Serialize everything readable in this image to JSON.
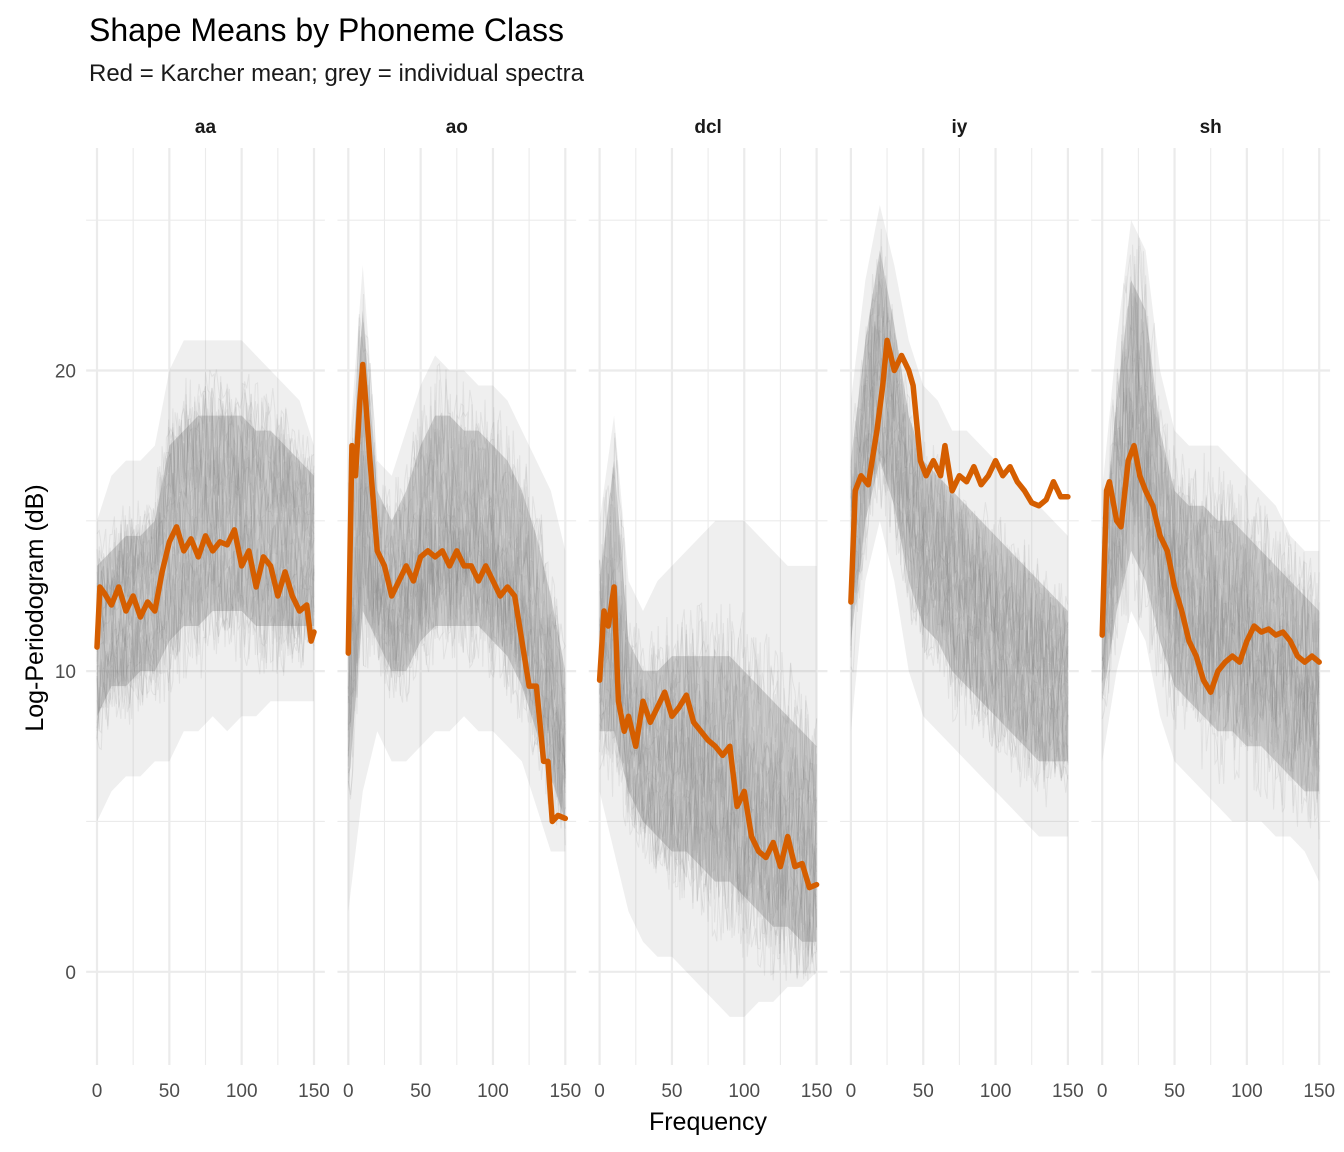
{
  "chart_data": {
    "type": "line",
    "title": "Shape Means by Phoneme Class",
    "subtitle": "Red = Karcher mean; grey = individual spectra",
    "xlabel": "Frequency",
    "ylabel": "Log-Periodogram (dB)",
    "xlim": [
      0,
      150
    ],
    "ylim": [
      -3.1,
      27.4
    ],
    "x_ticks": [
      0,
      50,
      100,
      150
    ],
    "x_tick_labels": [
      "0",
      "50",
      "100",
      "150"
    ],
    "y_ticks": [
      0,
      10,
      20
    ],
    "y_tick_labels": [
      "0",
      "10",
      "20"
    ],
    "grid": true,
    "colors": {
      "mean": "#d55e00",
      "individual": "#7f7f7f",
      "grid": "#ebebeb"
    },
    "band_x": [
      0,
      10,
      20,
      30,
      40,
      50,
      60,
      70,
      80,
      90,
      100,
      110,
      120,
      130,
      140,
      150
    ],
    "panels": [
      {
        "label": "aa",
        "mean": {
          "x": [
            0,
            2,
            5,
            10,
            15,
            20,
            25,
            30,
            35,
            40,
            45,
            50,
            55,
            60,
            65,
            70,
            75,
            80,
            85,
            90,
            95,
            100,
            105,
            110,
            115,
            120,
            125,
            130,
            135,
            140,
            145,
            148,
            150
          ],
          "y": [
            10.8,
            12.8,
            12.6,
            12.2,
            12.8,
            12.0,
            12.5,
            11.8,
            12.3,
            12.0,
            13.3,
            14.3,
            14.8,
            14.0,
            14.4,
            13.8,
            14.5,
            14.0,
            14.3,
            14.2,
            14.7,
            13.5,
            14.0,
            12.8,
            13.8,
            13.5,
            12.5,
            13.3,
            12.5,
            12.0,
            12.2,
            11.0,
            11.3
          ]
        },
        "outer_upper": [
          15,
          16.5,
          17,
          17,
          17.5,
          20,
          21,
          21,
          21,
          21,
          21,
          20.5,
          20,
          19.5,
          19,
          17.5
        ],
        "outer_lower": [
          5,
          6,
          6.5,
          6.5,
          7,
          7,
          8,
          8,
          8.5,
          8,
          8.5,
          8.5,
          9,
          9,
          9,
          9
        ],
        "inner_upper": [
          13.5,
          14,
          14.5,
          14.5,
          15,
          17.5,
          18,
          18.5,
          18.5,
          18.5,
          18.5,
          18,
          18,
          17.5,
          17,
          16.5
        ],
        "inner_lower": [
          8.5,
          9.5,
          9.5,
          10,
          10,
          11,
          11.5,
          11.5,
          12,
          12,
          12,
          11.5,
          11.5,
          11.5,
          11.5,
          11.5
        ]
      },
      {
        "label": "ao",
        "mean": {
          "x": [
            0,
            2.5,
            5,
            8,
            10,
            12,
            15,
            20,
            25,
            30,
            35,
            40,
            45,
            50,
            55,
            60,
            65,
            70,
            75,
            80,
            85,
            90,
            95,
            100,
            105,
            110,
            115,
            120,
            125,
            130,
            135,
            138,
            141,
            145,
            150
          ],
          "y": [
            10.6,
            17.5,
            16.5,
            19,
            20.2,
            19,
            17,
            14,
            13.5,
            12.5,
            13,
            13.5,
            13,
            13.8,
            14,
            13.8,
            14,
            13.5,
            14,
            13.5,
            13.5,
            13,
            13.5,
            13,
            12.5,
            12.8,
            12.5,
            11,
            9.5,
            9.5,
            7,
            7,
            5,
            5.2,
            5.1
          ]
        },
        "outer_upper": [
          17,
          23.5,
          17,
          16.5,
          18,
          19.5,
          20.5,
          20,
          20,
          19.5,
          19.5,
          19,
          18,
          17,
          16,
          14
        ],
        "outer_lower": [
          2,
          6,
          8,
          7,
          7,
          7.5,
          8,
          8,
          8.5,
          8,
          8,
          7.5,
          7,
          5.5,
          4,
          4
        ],
        "inner_upper": [
          15,
          22,
          16,
          15,
          16,
          17.5,
          18.5,
          18.5,
          18,
          18,
          17.5,
          17,
          16,
          14.5,
          12.5,
          10
        ],
        "inner_lower": [
          6,
          12,
          11,
          10,
          10,
          11,
          11.5,
          11.5,
          11.5,
          11.5,
          11,
          10.5,
          9.5,
          8,
          6.5,
          5
        ]
      },
      {
        "label": "dcl",
        "mean": {
          "x": [
            0,
            3,
            6,
            10,
            13,
            17,
            20,
            25,
            30,
            35,
            40,
            45,
            50,
            55,
            60,
            65,
            70,
            75,
            80,
            85,
            90,
            95,
            100,
            105,
            110,
            115,
            120,
            125,
            130,
            135,
            140,
            145,
            150
          ],
          "y": [
            9.7,
            12,
            11.5,
            12.8,
            9,
            8,
            8.5,
            7.5,
            9,
            8.3,
            8.8,
            9.3,
            8.5,
            8.8,
            9.2,
            8.3,
            8.0,
            7.7,
            7.5,
            7.2,
            7.5,
            5.5,
            6,
            4.5,
            4.0,
            3.8,
            4.3,
            3.5,
            4.5,
            3.5,
            3.6,
            2.8,
            2.9
          ]
        },
        "outer_upper": [
          15,
          18.5,
          13,
          12,
          13,
          13.5,
          14,
          14.5,
          15,
          15,
          15,
          14.5,
          14,
          13.5,
          13.5,
          13.5
        ],
        "outer_lower": [
          6,
          4,
          2,
          1,
          0.5,
          0.5,
          0,
          -0.5,
          -1,
          -1.5,
          -1.5,
          -1,
          -1,
          -0.5,
          -0.5,
          0
        ],
        "inner_upper": [
          13,
          17,
          11,
          10,
          10,
          10.5,
          10.5,
          10.5,
          10.5,
          10.5,
          10,
          9.5,
          9,
          8.5,
          8,
          7.5
        ],
        "inner_lower": [
          8,
          8,
          6,
          5,
          4.5,
          4,
          4,
          3.5,
          3,
          3,
          2.5,
          2,
          1.5,
          1.5,
          1,
          1
        ]
      },
      {
        "label": "iy",
        "mean": {
          "x": [
            0,
            3,
            7,
            12,
            18,
            22,
            25,
            30,
            35,
            40,
            43,
            48,
            52,
            57,
            62,
            65,
            70,
            75,
            80,
            85,
            90,
            95,
            100,
            105,
            110,
            115,
            120,
            125,
            130,
            135,
            140,
            145,
            150
          ],
          "y": [
            12.3,
            16,
            16.5,
            16.2,
            18,
            19.5,
            21,
            20,
            20.5,
            20,
            19.5,
            17,
            16.5,
            17,
            16.5,
            17.5,
            16,
            16.5,
            16.3,
            16.8,
            16.2,
            16.5,
            17,
            16.5,
            16.8,
            16.3,
            16,
            15.6,
            15.5,
            15.7,
            16.3,
            15.8,
            15.8
          ]
        },
        "outer_upper": [
          19,
          23,
          25.5,
          23.5,
          21,
          19.5,
          19,
          18,
          18,
          17.5,
          17,
          16.5,
          16,
          15.5,
          15,
          14.5
        ],
        "outer_lower": [
          8,
          13,
          15,
          13,
          10,
          8.5,
          8,
          7.5,
          7,
          6.5,
          6,
          5.5,
          5,
          4.5,
          4.5,
          4.5
        ],
        "inner_upper": [
          17,
          21,
          24,
          21.5,
          18.5,
          17,
          16.5,
          16,
          15.5,
          15,
          14.5,
          14,
          13.5,
          13,
          12.5,
          12
        ],
        "inner_lower": [
          11,
          15,
          17,
          15.5,
          13,
          11.5,
          11,
          10,
          9.5,
          9,
          8.5,
          8,
          7.5,
          7,
          7,
          7
        ]
      },
      {
        "label": "sh",
        "mean": {
          "x": [
            0,
            3,
            5,
            10,
            13,
            18,
            22,
            26,
            30,
            35,
            40,
            45,
            50,
            55,
            60,
            65,
            70,
            75,
            80,
            85,
            90,
            95,
            100,
            105,
            110,
            115,
            120,
            125,
            130,
            135,
            140,
            145,
            150
          ],
          "y": [
            11.2,
            16,
            16.3,
            15,
            14.8,
            17,
            17.5,
            16.5,
            16,
            15.5,
            14.5,
            14,
            12.8,
            12,
            11,
            10.5,
            9.7,
            9.3,
            10,
            10.3,
            10.5,
            10.3,
            11,
            11.5,
            11.3,
            11.4,
            11.2,
            11.3,
            11,
            10.5,
            10.3,
            10.5,
            10.3
          ]
        },
        "outer_upper": [
          16,
          21,
          25,
          24,
          20,
          18,
          17.5,
          17.5,
          17.5,
          17,
          16.5,
          16,
          15.5,
          14.5,
          14,
          14
        ],
        "outer_lower": [
          7,
          10,
          12,
          11,
          8.5,
          7,
          6.5,
          6,
          5.5,
          5,
          5,
          5,
          4.5,
          4.5,
          4,
          3
        ],
        "inner_upper": [
          14,
          19,
          23,
          22,
          18,
          16,
          15.5,
          15.5,
          15,
          15,
          14.5,
          14,
          13.5,
          13,
          12.5,
          12
        ],
        "inner_lower": [
          9,
          12,
          14,
          13,
          11,
          9.5,
          9,
          8.5,
          8,
          8,
          7.5,
          7.5,
          7,
          6.5,
          6,
          6
        ]
      }
    ]
  }
}
